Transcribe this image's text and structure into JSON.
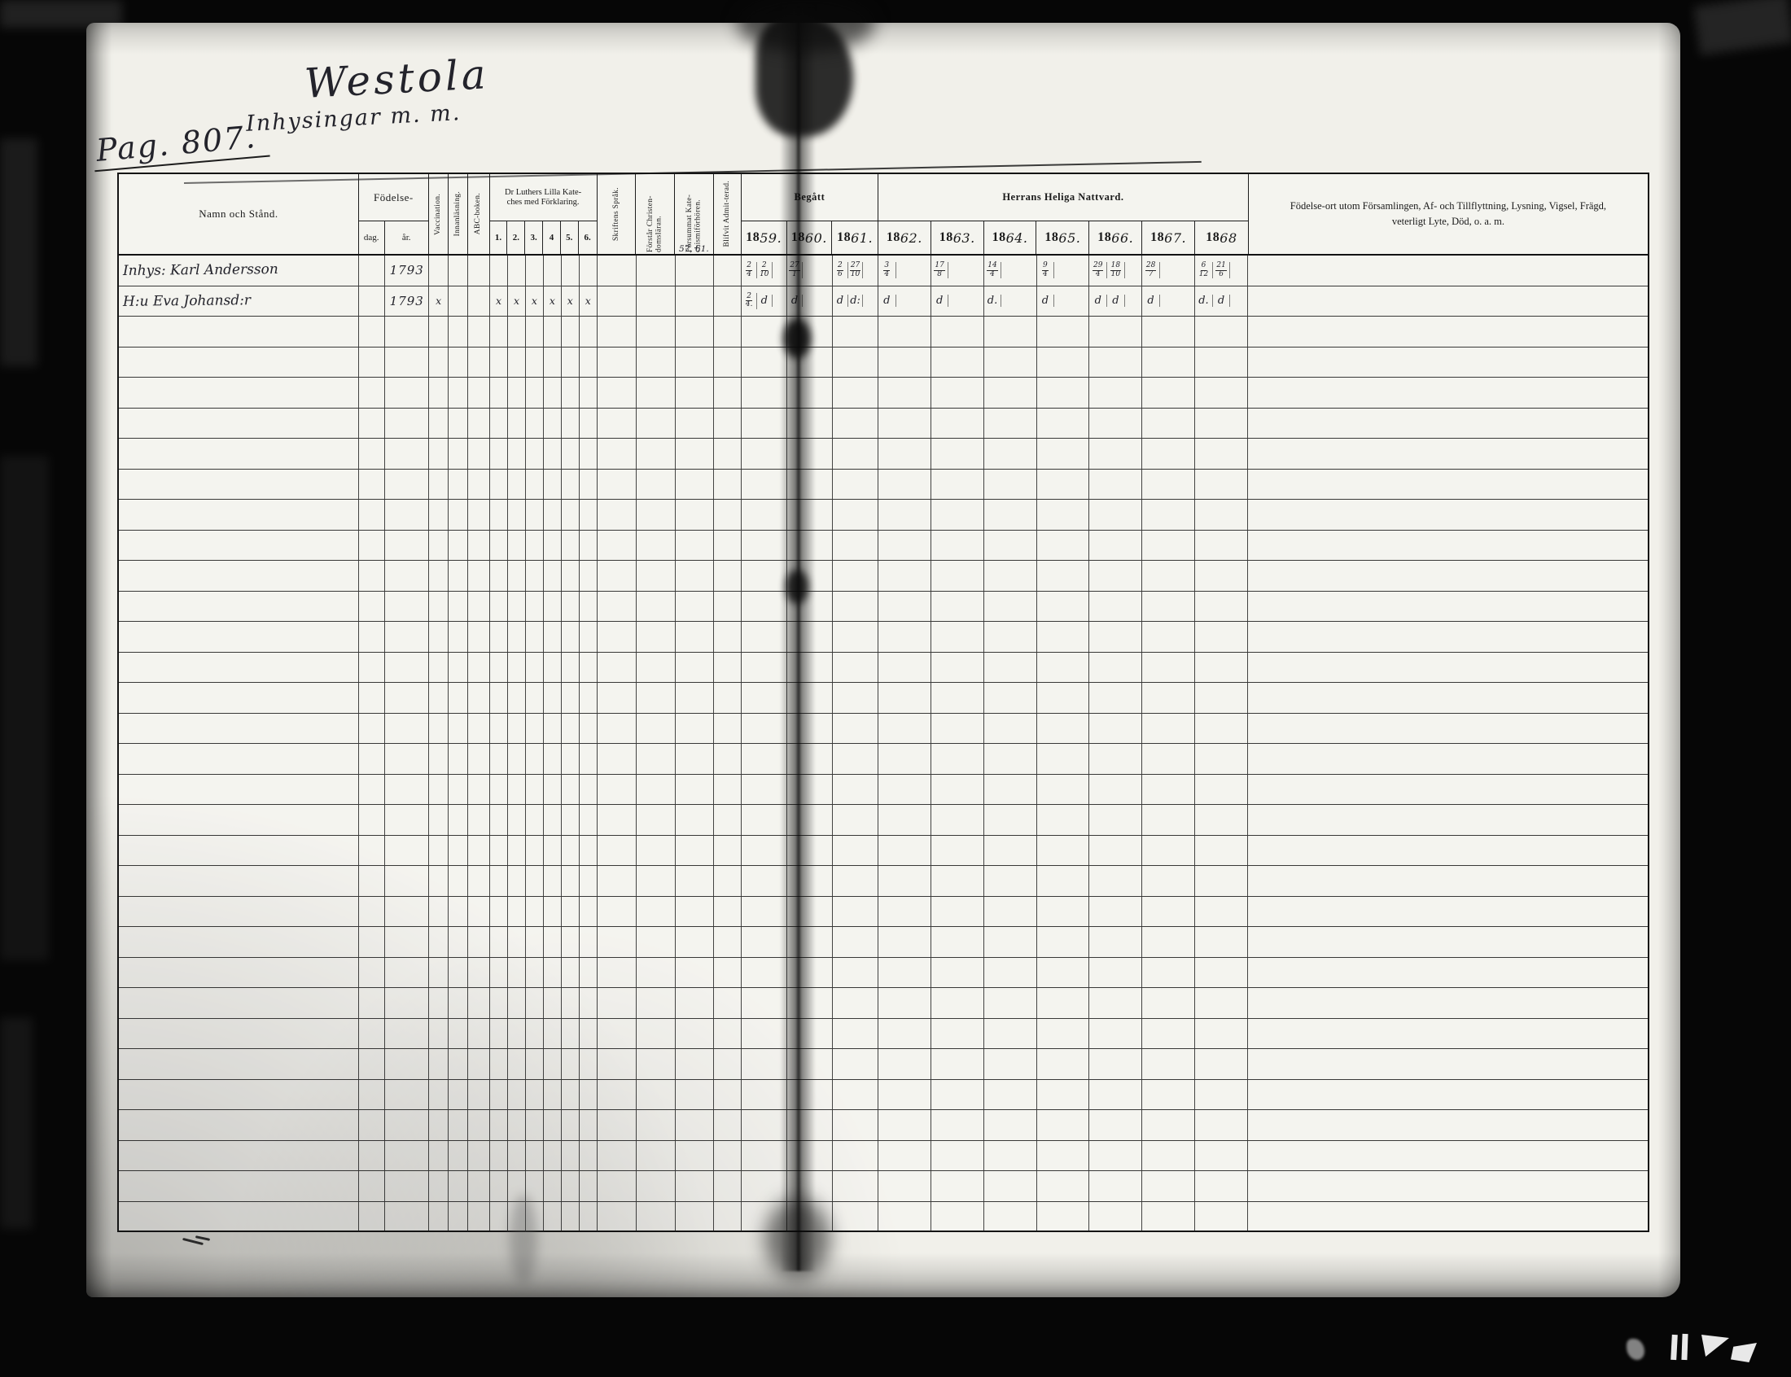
{
  "document": {
    "type": "church-household-examination-ledger-scan",
    "spread": "two-page"
  },
  "handwritten": {
    "place_title": "Westola",
    "subtitle": "Inhysingar m. m.",
    "page_label": "Pag. 807.",
    "forsummat_note": "57, 61."
  },
  "table": {
    "headers": {
      "namn": "Namn och Stånd.",
      "fodelse": "Födelse-",
      "dag": "dag.",
      "ar": "år.",
      "vaccination": "Vaccination.",
      "innanlasning": "Innanläsning.",
      "abc": "ABC-boken.",
      "katekes_line1": "Dr Luthers Lilla Kate-",
      "katekes_line2": "ches med Förklaring.",
      "katekes_nums": [
        "1.",
        "2.",
        "3.",
        "4",
        "5.",
        "6."
      ],
      "skriftens": "Skriftens Språk.",
      "forstar": "Förstår Christen-domsläran.",
      "forsummat": "Försummat Kate-chismiförhören.",
      "blifvit": "Blifvit Admit-terad.",
      "begatt": "Begått",
      "nattvard": "Herrans Heliga Nattvard.",
      "left_years": [
        "1859.",
        "1860.",
        "1861."
      ],
      "right_years": [
        "1862.",
        "1863.",
        "1864.",
        "1865.",
        "1866.",
        "1867.",
        "1868"
      ],
      "notes": "Födelse-ort utom Församlingen, Af- och Tillflyttning, Lysning, Vigsel, Frägd, veterligt Lyte, Död, o. a. m."
    },
    "year_subcols": 3,
    "total_rows": 32
  },
  "records": [
    {
      "name": "Inhys: Karl Andersson",
      "birth_day": "",
      "birth_year": "1793",
      "vaccination": "",
      "katekes": [
        "",
        "",
        "",
        "",
        "",
        ""
      ],
      "year_marks": [
        [
          "2/4",
          "2/10",
          ""
        ],
        [
          "27/1",
          "",
          ""
        ],
        [
          "2/6",
          "27/10",
          ""
        ],
        [
          "3/4",
          "",
          ""
        ],
        [
          "17/8",
          "",
          ""
        ],
        [
          "14/4",
          "",
          ""
        ],
        [
          "9/4",
          "",
          ""
        ],
        [
          "29/4",
          "18/10",
          ""
        ],
        [
          "28/7",
          "",
          ""
        ],
        [
          "6/12",
          "21/6",
          ""
        ]
      ],
      "notes": ""
    },
    {
      "name": "H:u Eva Johansd:r",
      "birth_day": "",
      "birth_year": "1793",
      "vaccination": "x",
      "katekes": [
        "x",
        "x",
        "x",
        "x",
        "x",
        "x"
      ],
      "year_marks": [
        [
          "2/4.",
          "d",
          ""
        ],
        [
          "d",
          "",
          ""
        ],
        [
          "d",
          "d:",
          ""
        ],
        [
          "d",
          "",
          ""
        ],
        [
          "d",
          "",
          ""
        ],
        [
          "d.",
          "",
          ""
        ],
        [
          "d",
          "",
          ""
        ],
        [
          "d",
          "d",
          ""
        ],
        [
          "d",
          "",
          ""
        ],
        [
          "d.",
          "d",
          ""
        ]
      ],
      "notes": ""
    }
  ]
}
